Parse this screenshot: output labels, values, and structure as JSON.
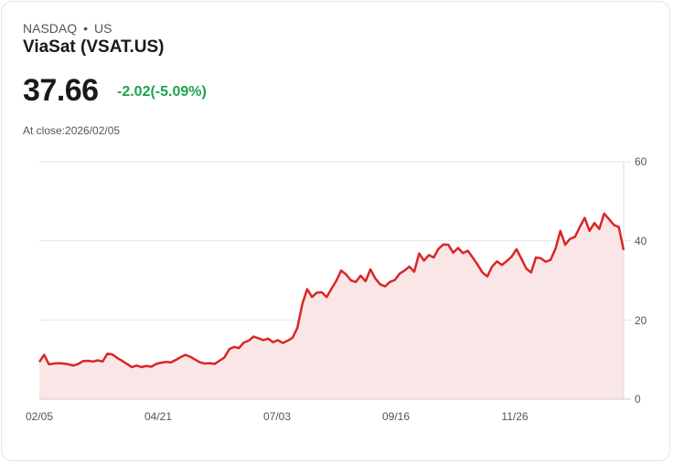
{
  "header": {
    "exchange": "NASDAQ",
    "separator": "•",
    "region": "US",
    "title": "ViaSat (VSAT.US)",
    "price": "37.66",
    "change": "-2.02(-5.09%)",
    "close_label": "At close:2026/02/05"
  },
  "colors": {
    "line": "#d92626",
    "fill": "#fbe6e7",
    "change": "#1fa34a",
    "grid": "#e5e5e5"
  },
  "chart_data": {
    "type": "area",
    "title": "ViaSat (VSAT.US)",
    "xlabel": "",
    "ylabel": "",
    "ylim": [
      0,
      60
    ],
    "yticks": [
      "60",
      "40",
      "20",
      "0"
    ],
    "xticks": [
      "02/05",
      "04/21",
      "07/03",
      "09/16",
      "11/26"
    ],
    "grid": true,
    "y_axis_position": "right",
    "values": [
      9.4,
      11.2,
      8.8,
      9.0,
      9.1,
      9.0,
      8.8,
      8.5,
      8.9,
      9.6,
      9.7,
      9.5,
      9.8,
      9.5,
      11.5,
      11.3,
      10.4,
      9.7,
      8.9,
      8.1,
      8.5,
      8.1,
      8.4,
      8.2,
      8.9,
      9.2,
      9.4,
      9.3,
      9.9,
      10.6,
      11.2,
      10.7,
      10.0,
      9.3,
      9.0,
      9.1,
      8.9,
      9.7,
      10.5,
      12.6,
      13.2,
      12.9,
      14.3,
      14.8,
      15.8,
      15.4,
      14.9,
      15.3,
      14.4,
      14.9,
      14.2,
      14.8,
      15.5,
      18.0,
      24.0,
      27.8,
      25.8,
      26.9,
      27.0,
      25.8,
      27.9,
      29.9,
      32.5,
      31.5,
      30.0,
      29.6,
      31.2,
      29.8,
      32.8,
      30.5,
      29.0,
      28.5,
      29.6,
      30.1,
      31.7,
      32.5,
      33.5,
      32.2,
      36.8,
      35.0,
      36.4,
      35.8,
      38.0,
      39.1,
      39.0,
      37.0,
      38.2,
      36.9,
      37.5,
      35.8,
      34.0,
      32.0,
      31.0,
      33.5,
      34.8,
      33.9,
      34.9,
      36.0,
      37.9,
      35.5,
      33.0,
      32.0,
      35.8,
      35.6,
      34.7,
      35.2,
      38.0,
      42.5,
      39.0,
      40.5,
      41.0,
      43.5,
      45.8,
      42.5,
      44.5,
      43.0,
      46.9,
      45.5,
      44.0,
      43.5,
      37.66
    ]
  }
}
